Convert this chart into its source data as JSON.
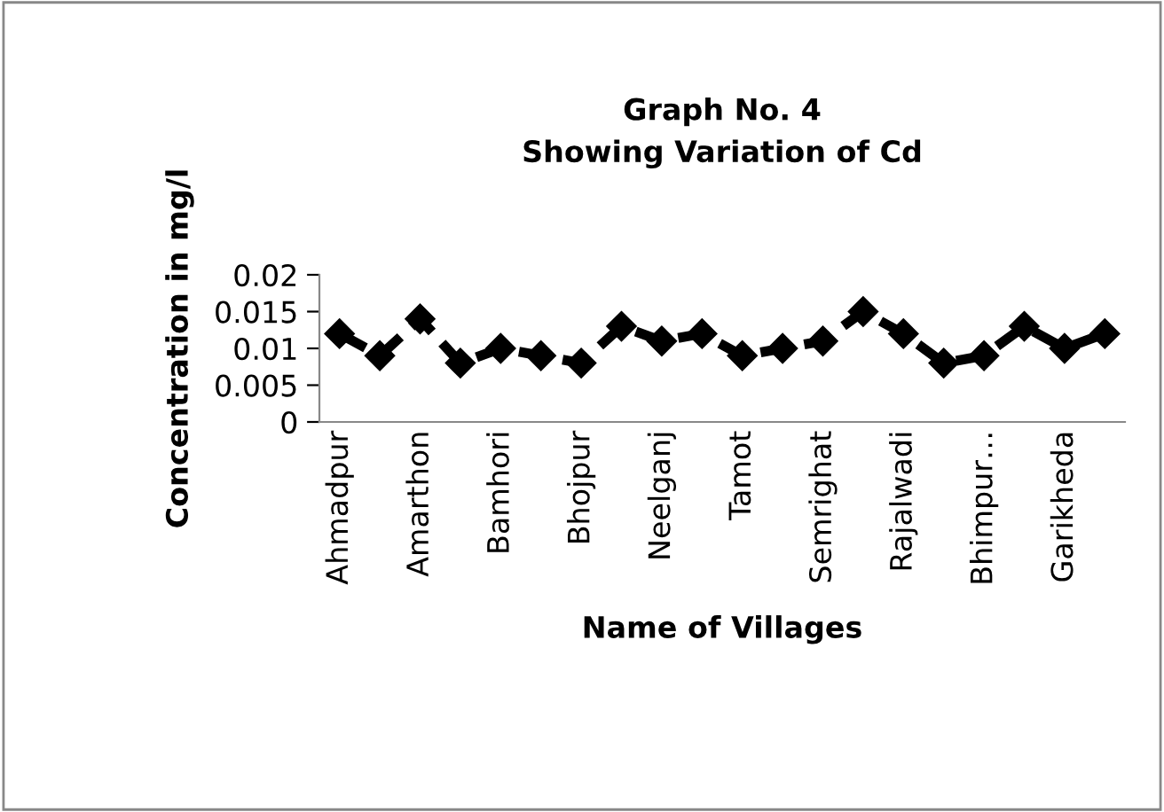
{
  "chart_data": {
    "type": "line",
    "title": "Graph No. 4\nShowing Variation of Cd",
    "xlabel": "Name of Villages",
    "ylabel": "Concentration in mg/l",
    "categories": [
      "Ahmadpur",
      null,
      "Amarthon",
      null,
      "Bamhori",
      null,
      "Bhojpur",
      null,
      "Neelganj",
      null,
      "Tamot",
      null,
      "Semrighat",
      null,
      "Rajalwadi",
      null,
      "Bhimpur…",
      null,
      "Garikheda",
      null
    ],
    "series": [
      {
        "color": "#000000",
        "values": [
          0.012,
          0.009,
          0.014,
          0.008,
          0.01,
          0.009,
          0.008,
          0.013,
          0.011,
          0.012,
          0.009,
          0.01,
          0.011,
          0.015,
          0.012,
          0.008,
          0.009,
          0.013,
          0.01,
          0.012
        ]
      }
    ],
    "ylim": [
      0,
      0.02
    ],
    "yticks": [
      {
        "value": 0,
        "label": "0"
      },
      {
        "value": 0.005,
        "label": "0.005"
      },
      {
        "value": 0.01,
        "label": "0.01"
      },
      {
        "value": 0.015,
        "label": "0.015"
      },
      {
        "value": 0.02,
        "label": "0.02"
      }
    ],
    "grid": false,
    "legend": false,
    "marker": "diamond",
    "line_style": "dashed"
  }
}
